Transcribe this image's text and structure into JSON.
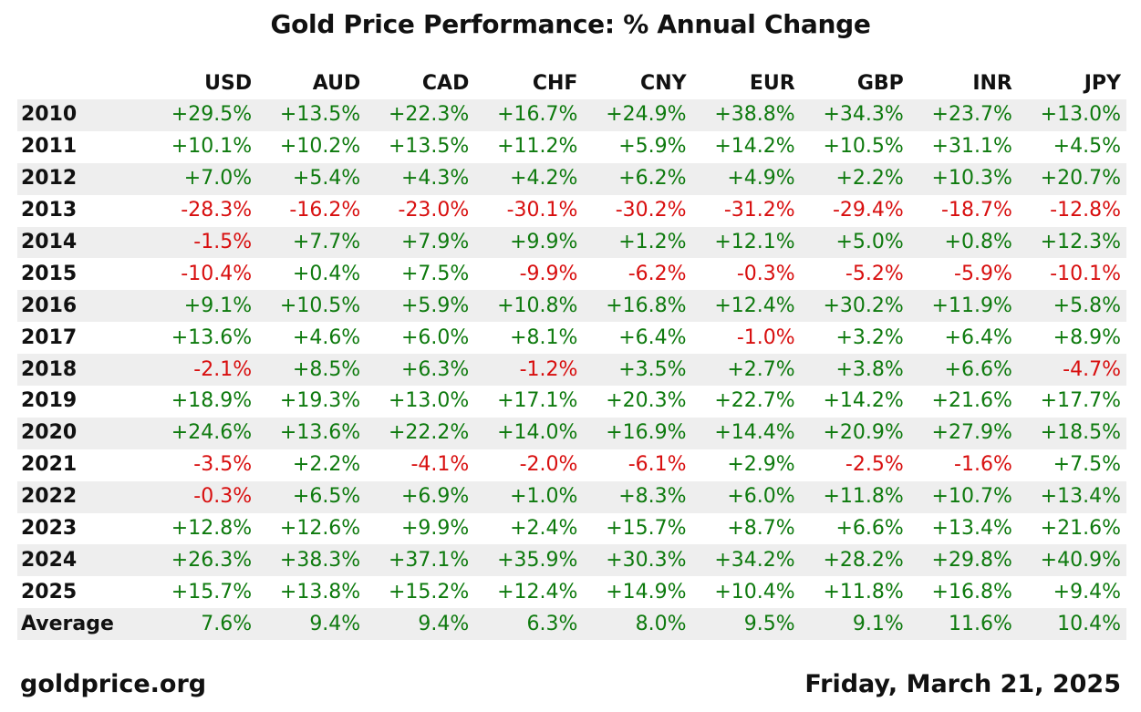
{
  "title": "Gold Price Performance: % Annual Change",
  "footer": {
    "source": "goldprice.org",
    "date": "Friday, March 21, 2025"
  },
  "colors": {
    "positive": "#0e7a0e",
    "negative": "#d80f0f",
    "stripe": "#eeeeee"
  },
  "chart_data": {
    "type": "table",
    "title": "Gold Price Performance: % Annual Change",
    "columns": [
      "USD",
      "AUD",
      "CAD",
      "CHF",
      "CNY",
      "EUR",
      "GBP",
      "INR",
      "JPY"
    ],
    "rows": [
      {
        "label": "2010",
        "values": [
          "+29.5%",
          "+13.5%",
          "+22.3%",
          "+16.7%",
          "+24.9%",
          "+38.8%",
          "+34.3%",
          "+23.7%",
          "+13.0%"
        ]
      },
      {
        "label": "2011",
        "values": [
          "+10.1%",
          "+10.2%",
          "+13.5%",
          "+11.2%",
          "+5.9%",
          "+14.2%",
          "+10.5%",
          "+31.1%",
          "+4.5%"
        ]
      },
      {
        "label": "2012",
        "values": [
          "+7.0%",
          "+5.4%",
          "+4.3%",
          "+4.2%",
          "+6.2%",
          "+4.9%",
          "+2.2%",
          "+10.3%",
          "+20.7%"
        ]
      },
      {
        "label": "2013",
        "values": [
          "-28.3%",
          "-16.2%",
          "-23.0%",
          "-30.1%",
          "-30.2%",
          "-31.2%",
          "-29.4%",
          "-18.7%",
          "-12.8%"
        ]
      },
      {
        "label": "2014",
        "values": [
          "-1.5%",
          "+7.7%",
          "+7.9%",
          "+9.9%",
          "+1.2%",
          "+12.1%",
          "+5.0%",
          "+0.8%",
          "+12.3%"
        ]
      },
      {
        "label": "2015",
        "values": [
          "-10.4%",
          "+0.4%",
          "+7.5%",
          "-9.9%",
          "-6.2%",
          "-0.3%",
          "-5.2%",
          "-5.9%",
          "-10.1%"
        ]
      },
      {
        "label": "2016",
        "values": [
          "+9.1%",
          "+10.5%",
          "+5.9%",
          "+10.8%",
          "+16.8%",
          "+12.4%",
          "+30.2%",
          "+11.9%",
          "+5.8%"
        ]
      },
      {
        "label": "2017",
        "values": [
          "+13.6%",
          "+4.6%",
          "+6.0%",
          "+8.1%",
          "+6.4%",
          "-1.0%",
          "+3.2%",
          "+6.4%",
          "+8.9%"
        ]
      },
      {
        "label": "2018",
        "values": [
          "-2.1%",
          "+8.5%",
          "+6.3%",
          "-1.2%",
          "+3.5%",
          "+2.7%",
          "+3.8%",
          "+6.6%",
          "-4.7%"
        ]
      },
      {
        "label": "2019",
        "values": [
          "+18.9%",
          "+19.3%",
          "+13.0%",
          "+17.1%",
          "+20.3%",
          "+22.7%",
          "+14.2%",
          "+21.6%",
          "+17.7%"
        ]
      },
      {
        "label": "2020",
        "values": [
          "+24.6%",
          "+13.6%",
          "+22.2%",
          "+14.0%",
          "+16.9%",
          "+14.4%",
          "+20.9%",
          "+27.9%",
          "+18.5%"
        ]
      },
      {
        "label": "2021",
        "values": [
          "-3.5%",
          "+2.2%",
          "-4.1%",
          "-2.0%",
          "-6.1%",
          "+2.9%",
          "-2.5%",
          "-1.6%",
          "+7.5%"
        ]
      },
      {
        "label": "2022",
        "values": [
          "-0.3%",
          "+6.5%",
          "+6.9%",
          "+1.0%",
          "+8.3%",
          "+6.0%",
          "+11.8%",
          "+10.7%",
          "+13.4%"
        ]
      },
      {
        "label": "2023",
        "values": [
          "+12.8%",
          "+12.6%",
          "+9.9%",
          "+2.4%",
          "+15.7%",
          "+8.7%",
          "+6.6%",
          "+13.4%",
          "+21.6%"
        ]
      },
      {
        "label": "2024",
        "values": [
          "+26.3%",
          "+38.3%",
          "+37.1%",
          "+35.9%",
          "+30.3%",
          "+34.2%",
          "+28.2%",
          "+29.8%",
          "+40.9%"
        ]
      },
      {
        "label": "2025",
        "values": [
          "+15.7%",
          "+13.8%",
          "+15.2%",
          "+12.4%",
          "+14.9%",
          "+10.4%",
          "+11.8%",
          "+16.8%",
          "+9.4%"
        ]
      },
      {
        "label": "Average",
        "values": [
          "7.6%",
          "9.4%",
          "9.4%",
          "6.3%",
          "8.0%",
          "9.5%",
          "9.1%",
          "11.6%",
          "10.4%"
        ]
      }
    ]
  }
}
